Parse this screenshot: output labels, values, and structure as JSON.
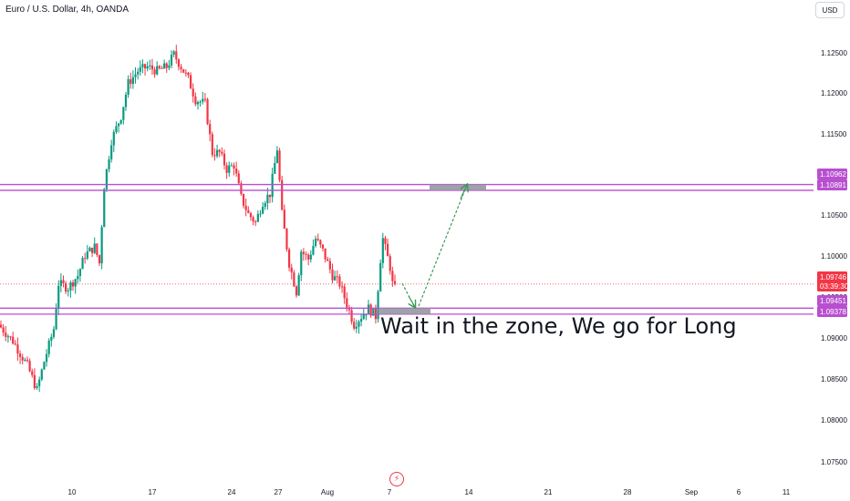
{
  "header": {
    "title": "Euro / U.S. Dollar, 4h, OANDA",
    "currency": "USD"
  },
  "colors": {
    "up": "#089981",
    "down": "#f23645",
    "zone_line": "#b84fd0",
    "zone_label_bg": "#b84fd0",
    "arrow": "#3a9a57",
    "target_box": "#9598a1",
    "price_label_bg": "#f23645",
    "current_price_line": "#f7525f"
  },
  "icons": {
    "event_marker": "lightning-icon"
  },
  "chart_data": {
    "type": "candlestick",
    "title": "Euro / U.S. Dollar, 4h, OANDA",
    "xlabel": "",
    "ylabel": "",
    "ylim": [
      1.0715,
      1.1305
    ],
    "y_ticks": [
      "1.12500",
      "1.12000",
      "1.11500",
      "1.11000",
      "1.10500",
      "1.10000",
      "1.09500",
      "1.09000",
      "1.08500",
      "1.08000",
      "1.07500"
    ],
    "x_ticks": [
      "10",
      "17",
      "24",
      "27",
      "Aug",
      "7",
      "14",
      "21",
      "28",
      "Sep",
      "6",
      "11"
    ],
    "grid": false,
    "anchors": [
      [
        0,
        1.0925
      ],
      [
        6,
        1.0905
      ],
      [
        12,
        1.0875
      ],
      [
        16,
        1.0845
      ],
      [
        19,
        1.088
      ],
      [
        23,
        1.092
      ],
      [
        25,
        1.0975
      ],
      [
        29,
        1.097
      ],
      [
        33,
        1.0985
      ],
      [
        36,
        1.101
      ],
      [
        40,
        1.102
      ],
      [
        42,
        1.1
      ],
      [
        44,
        1.1095
      ],
      [
        47,
        1.115
      ],
      [
        51,
        1.118
      ],
      [
        54,
        1.122
      ],
      [
        58,
        1.1235
      ],
      [
        62,
        1.124
      ],
      [
        66,
        1.1235
      ],
      [
        70,
        1.124
      ],
      [
        73,
        1.1255
      ],
      [
        76,
        1.124
      ],
      [
        79,
        1.1225
      ],
      [
        82,
        1.12
      ],
      [
        86,
        1.1195
      ],
      [
        89,
        1.1135
      ],
      [
        92,
        1.1135
      ],
      [
        95,
        1.1115
      ],
      [
        98,
        1.112
      ],
      [
        101,
        1.108
      ],
      [
        104,
        1.106
      ],
      [
        107,
        1.105
      ],
      [
        110,
        1.1075
      ],
      [
        113,
        1.1085
      ],
      [
        116,
        1.114
      ],
      [
        118,
        1.106
      ],
      [
        121,
        1.1
      ],
      [
        124,
        1.0965
      ],
      [
        126,
        1.1015
      ],
      [
        129,
        1.1005
      ],
      [
        132,
        1.103
      ],
      [
        135,
        1.1015
      ],
      [
        139,
        1.0985
      ],
      [
        142,
        1.0975
      ],
      [
        145,
        1.095
      ],
      [
        148,
        1.0925
      ],
      [
        151,
        1.0935
      ],
      [
        154,
        1.0945
      ],
      [
        157,
        1.0935
      ],
      [
        159,
        1.1005
      ],
      [
        160,
        1.103
      ],
      [
        163,
        1.0995
      ],
      [
        164,
        1.0975
      ]
    ],
    "horizontal_levels": [
      {
        "price": 1.09378,
        "label": "1.09378"
      },
      {
        "price": 1.09451,
        "label": "1.09451"
      },
      {
        "price": 1.10891,
        "label": "1.10891"
      },
      {
        "price": 1.10962,
        "label": "1.10962"
      }
    ],
    "current_price": {
      "price": 1.09746,
      "label": "1.09746",
      "countdown": "03:39:30"
    },
    "annotation": "Wait in the zone, We go for Long"
  }
}
